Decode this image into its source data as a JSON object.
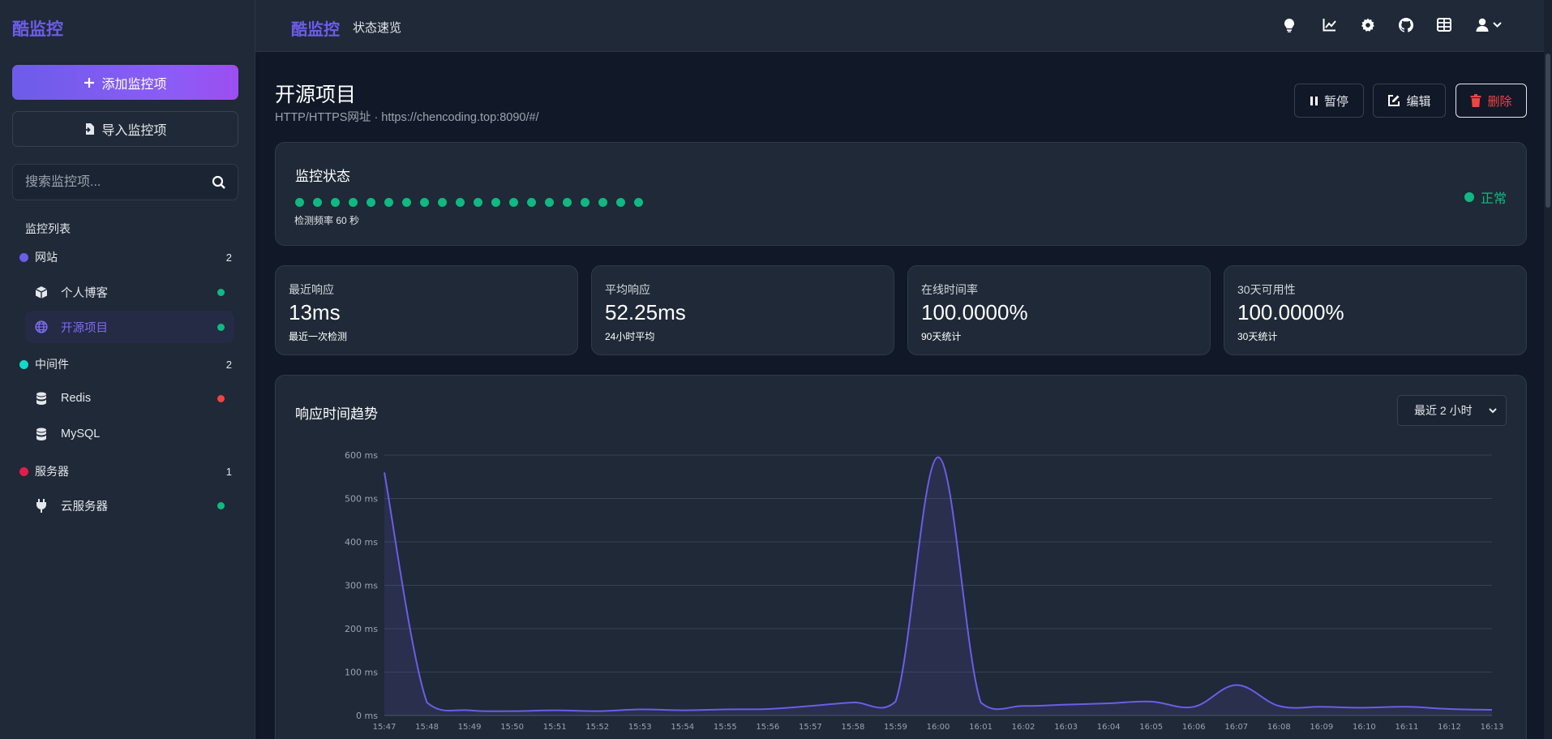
{
  "brand": "酷监控",
  "sidebar": {
    "add_button": "添加监控项",
    "import_button": "导入监控项",
    "search_placeholder": "搜索监控项...",
    "list_title": "监控列表",
    "groups": [
      {
        "name": "网站",
        "count": "2",
        "color": "#6d5ce8"
      },
      {
        "name": "中间件",
        "count": "2",
        "color": "#14d8c8"
      },
      {
        "name": "服务器",
        "count": "1",
        "color": "#e11d48"
      }
    ],
    "items": [
      {
        "label": "个人博客",
        "icon": "cube-icon",
        "status": "#10b981"
      },
      {
        "label": "开源项目",
        "icon": "globe-icon",
        "status": "#10b981",
        "active": true
      },
      {
        "label": "Redis",
        "icon": "database-icon",
        "status": "#ef4444"
      },
      {
        "label": "MySQL",
        "icon": "database-icon",
        "status": null
      },
      {
        "label": "云服务器",
        "icon": "plug-icon",
        "status": "#10b981"
      }
    ]
  },
  "topbar": {
    "title": "酷监控",
    "subtitle": "状态速览",
    "icons": [
      "lightbulb-icon",
      "chart-line-icon",
      "gear-icon",
      "github-icon",
      "table-icon",
      "user-icon"
    ]
  },
  "page": {
    "title": "开源项目",
    "subtitle": "HTTP/HTTPS网址  · https://chencoding.top:8090/#/",
    "actions": {
      "pause": "暂停",
      "edit": "编辑",
      "delete": "删除"
    }
  },
  "status": {
    "label": "监控状态",
    "beats": 20,
    "frequency": "检测频率 60 秒",
    "state": "正常"
  },
  "stats": [
    {
      "label": "最近响应",
      "value": "13ms",
      "note": "最近一次检测"
    },
    {
      "label": "平均响应",
      "value": "52.25ms",
      "note": "24小时平均"
    },
    {
      "label": "在线时间率",
      "value": "100.0000%",
      "note": "90天统计"
    },
    {
      "label": "30天可用性",
      "value": "100.0000%",
      "note": "30天统计"
    }
  ],
  "chart_section": {
    "title": "响应时间趋势",
    "range": "最近 2 小时"
  },
  "chart_data": {
    "type": "area",
    "x": [
      "15:47",
      "15:48",
      "15:49",
      "15:50",
      "15:51",
      "15:52",
      "15:53",
      "15:54",
      "15:55",
      "15:56",
      "15:57",
      "15:58",
      "15:59",
      "16:00",
      "16:01",
      "16:02",
      "16:03",
      "16:04",
      "16:05",
      "16:06",
      "16:07",
      "16:08",
      "16:09",
      "16:10",
      "16:11",
      "16:12",
      "16:13"
    ],
    "series": [
      {
        "values": [
          560,
          30,
          12,
          10,
          12,
          10,
          14,
          12,
          14,
          15,
          22,
          30,
          32,
          595,
          30,
          22,
          25,
          28,
          32,
          20,
          70,
          22,
          20,
          18,
          20,
          15,
          13
        ]
      }
    ],
    "yticks": [
      "0 ms",
      "100 ms",
      "200 ms",
      "300 ms",
      "400 ms",
      "500 ms",
      "600 ms"
    ],
    "ylim": [
      0,
      600
    ],
    "color": "#6d5ce8",
    "grid": true
  }
}
